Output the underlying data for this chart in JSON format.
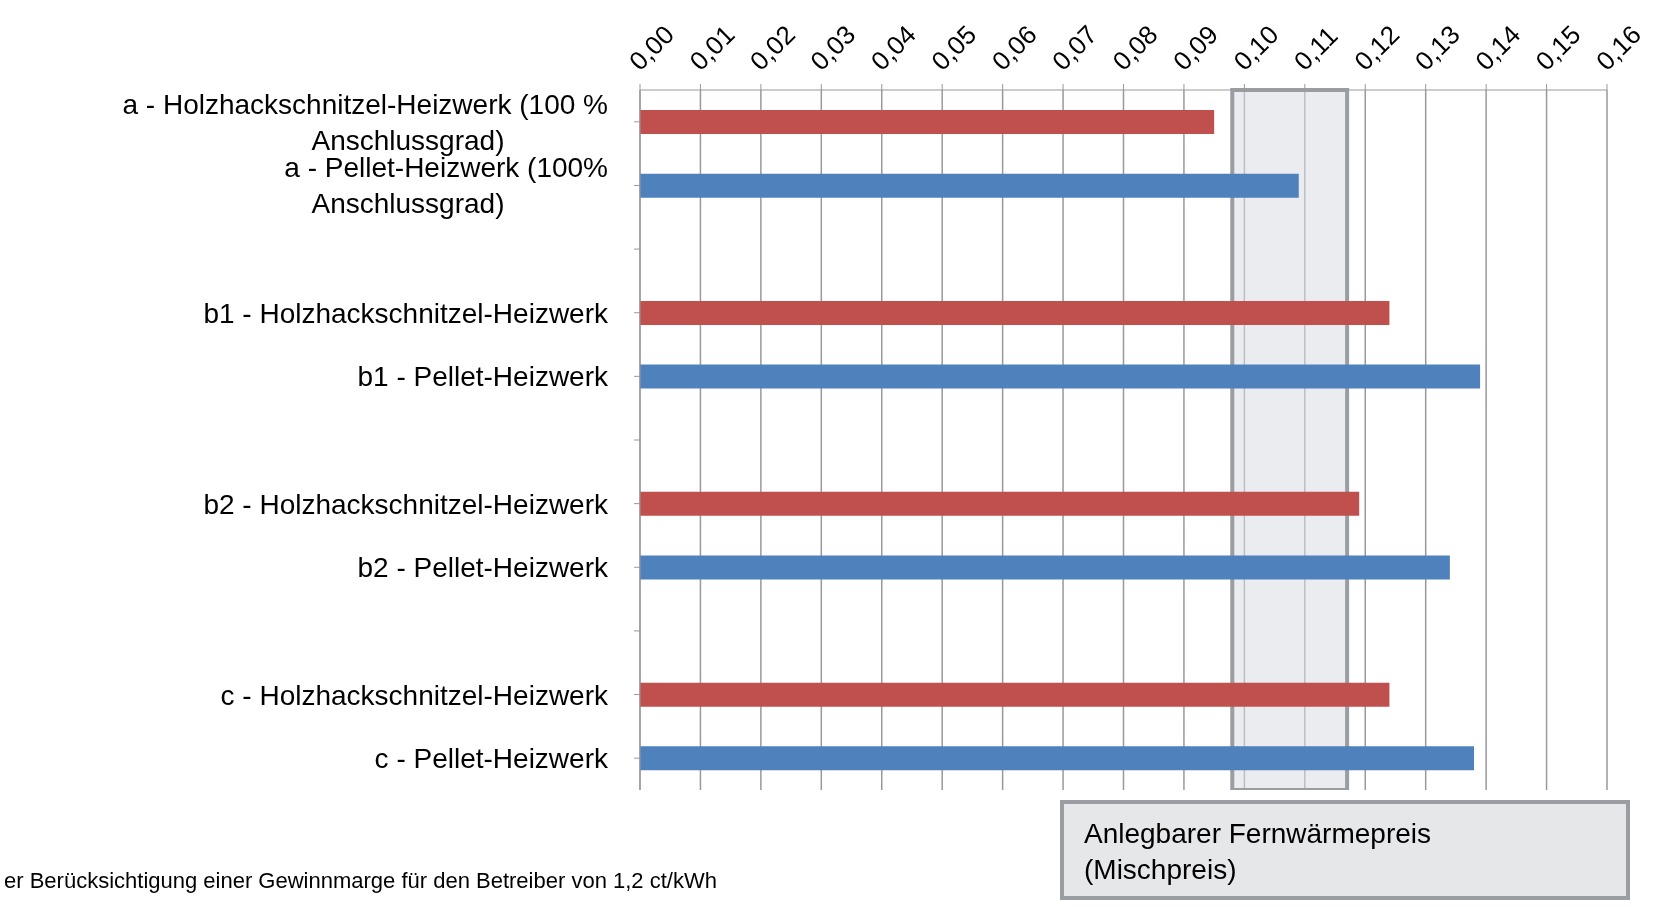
{
  "chart_data": {
    "type": "bar",
    "orientation": "horizontal",
    "categories": [
      "a - Holzhackschnitzel-Heizwerk (100 % Anschlussgrad)",
      "a - Pellet-Heizwerk (100% Anschlussgrad)",
      null,
      "b1 - Holzhackschnitzel-Heizwerk",
      "b1 - Pellet-Heizwerk",
      null,
      "b2 - Holzhackschnitzel-Heizwerk",
      "b2 - Pellet-Heizwerk",
      null,
      "c - Holzhackschnitzel-Heizwerk",
      "c - Pellet-Heizwerk"
    ],
    "values": [
      0.095,
      0.109,
      null,
      0.124,
      0.139,
      null,
      0.119,
      0.134,
      null,
      0.124,
      0.138
    ],
    "colors": [
      "#c0504d",
      "#4f81bd",
      null,
      "#c0504d",
      "#4f81bd",
      null,
      "#c0504d",
      "#4f81bd",
      null,
      "#c0504d",
      "#4f81bd"
    ],
    "xlim": [
      0,
      0.16
    ],
    "xticks": [
      {
        "value": 0,
        "label": "0,00"
      },
      {
        "value": 0.01,
        "label": "0,01"
      },
      {
        "value": 0.02,
        "label": "0,02"
      },
      {
        "value": 0.03,
        "label": "0,03"
      },
      {
        "value": 0.04,
        "label": "0,04"
      },
      {
        "value": 0.05,
        "label": "0,05"
      },
      {
        "value": 0.06,
        "label": "0,06"
      },
      {
        "value": 0.07,
        "label": "0,07"
      },
      {
        "value": 0.08,
        "label": "0,08"
      },
      {
        "value": 0.09,
        "label": "0,09"
      },
      {
        "value": 0.1,
        "label": "0,10"
      },
      {
        "value": 0.11,
        "label": "0,11"
      },
      {
        "value": 0.12,
        "label": "0,12"
      },
      {
        "value": 0.13,
        "label": "0,13"
      },
      {
        "value": 0.14,
        "label": "0,14"
      },
      {
        "value": 0.15,
        "label": "0,15"
      },
      {
        "value": 0.16,
        "label": "0,16"
      }
    ],
    "bands": [
      {
        "axis": "x",
        "from": 0.098,
        "to": 0.117,
        "label": "Anlegbarer Fernwärmepreis (Mischpreis)",
        "color": "#d9dce1"
      }
    ],
    "grid": "x",
    "annotations": [
      "er Berücksichtigung einer Gewinnmarge für den Betreiber von 1,2 ct/kWh"
    ]
  }
}
